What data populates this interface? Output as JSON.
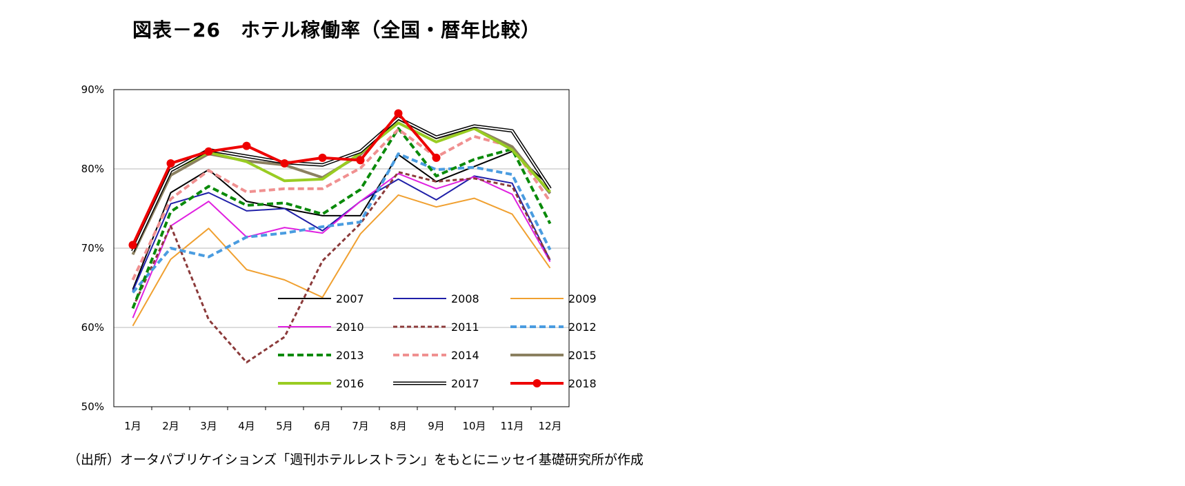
{
  "title": "図表－26　ホテル稼働率（全国・暦年比較）",
  "source": "（出所）オータパブリケイションズ「週刊ホテルレストラン」をもとにニッセイ基礎研究所が作成",
  "chart_data": {
    "type": "line",
    "title": "図表－26　ホテル稼働率（全国・暦年比較）",
    "xlabel": "",
    "ylabel": "",
    "categories": [
      "1月",
      "2月",
      "3月",
      "4月",
      "5月",
      "6月",
      "7月",
      "8月",
      "9月",
      "10月",
      "11月",
      "12月"
    ],
    "ylim": [
      50,
      90
    ],
    "yticks": [
      50,
      60,
      70,
      80,
      90
    ],
    "ytick_labels": [
      "50%",
      "60%",
      "70%",
      "80%",
      "90%"
    ],
    "grid": true,
    "legend_position": "inside-bottom-right",
    "series": [
      {
        "name": "2007",
        "color": "#000000",
        "style": "solid",
        "width": 2,
        "values": [
          64.8,
          77.0,
          79.9,
          75.9,
          75.0,
          74.1,
          74.1,
          81.8,
          78.4,
          80.3,
          82.2,
          77.8
        ]
      },
      {
        "name": "2008",
        "color": "#1f1fa8",
        "style": "solid",
        "width": 2,
        "values": [
          64.6,
          75.6,
          77.0,
          74.7,
          75.0,
          72.2,
          75.9,
          78.7,
          76.1,
          79.1,
          78.2,
          68.5
        ]
      },
      {
        "name": "2009",
        "color": "#f0a030",
        "style": "solid",
        "width": 2,
        "values": [
          60.2,
          68.6,
          72.5,
          67.3,
          66.0,
          63.8,
          71.8,
          76.7,
          75.2,
          76.3,
          74.3,
          67.5
        ]
      },
      {
        "name": "2010",
        "color": "#e020e0",
        "style": "solid",
        "width": 2,
        "values": [
          61.2,
          72.8,
          75.9,
          71.4,
          72.6,
          71.9,
          75.9,
          79.4,
          77.5,
          79.0,
          76.8,
          68.3
        ]
      },
      {
        "name": "2011",
        "color": "#8b3a3a",
        "style": "dashed",
        "width": 3,
        "values": [
          62.5,
          72.8,
          61.0,
          55.6,
          58.8,
          68.4,
          73.1,
          79.6,
          78.4,
          78.8,
          77.8,
          68.5
        ]
      },
      {
        "name": "2012",
        "color": "#4a9ce0",
        "style": "dashed",
        "width": 4,
        "values": [
          64.4,
          70.0,
          68.9,
          71.4,
          71.9,
          72.7,
          73.3,
          81.9,
          79.9,
          80.2,
          79.3,
          69.8
        ]
      },
      {
        "name": "2013",
        "color": "#0a8a0a",
        "style": "dashed",
        "width": 4,
        "values": [
          62.4,
          74.6,
          77.8,
          75.4,
          75.7,
          74.3,
          77.4,
          85.1,
          79.1,
          81.2,
          82.5,
          73.1
        ]
      },
      {
        "name": "2014",
        "color": "#f09090",
        "style": "dashed",
        "width": 4,
        "values": [
          66.0,
          76.2,
          79.8,
          77.1,
          77.5,
          77.5,
          80.1,
          85.0,
          81.5,
          84.1,
          82.8,
          75.9
        ]
      },
      {
        "name": "2015",
        "color": "#8b8060",
        "style": "solid",
        "width": 4,
        "values": [
          69.2,
          79.2,
          81.9,
          81.0,
          80.5,
          78.9,
          81.8,
          86.3,
          83.9,
          85.1,
          82.8,
          76.9
        ]
      },
      {
        "name": "2016",
        "color": "#99cc22",
        "style": "solid",
        "width": 4,
        "values": [
          69.8,
          79.8,
          82.1,
          80.9,
          78.5,
          78.7,
          82.0,
          85.8,
          83.4,
          85.1,
          82.4,
          77.1
        ]
      },
      {
        "name": "2017",
        "color": "#000000",
        "style": "double",
        "width": 5,
        "values": [
          69.6,
          79.8,
          82.4,
          81.6,
          80.8,
          80.5,
          82.2,
          86.4,
          84.0,
          85.4,
          84.8,
          77.5
        ]
      },
      {
        "name": "2018",
        "color": "#ee0000",
        "style": "solid-marker",
        "width": 4,
        "values": [
          70.4,
          80.7,
          82.2,
          82.9,
          80.7,
          81.4,
          81.1,
          87.0,
          81.4,
          null,
          null,
          null
        ]
      }
    ]
  }
}
